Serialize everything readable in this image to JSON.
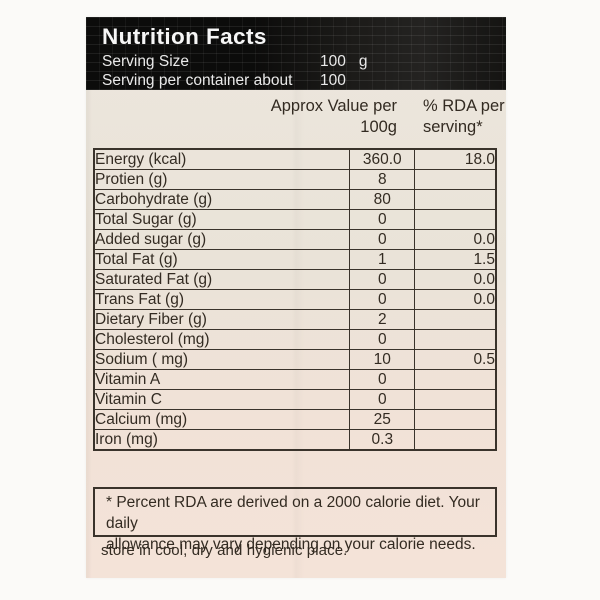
{
  "colors": {
    "band": "#1b1a18",
    "label-top": "#ece6dd",
    "label-bottom": "#f4e3d8",
    "ink": "#332b22",
    "border": "#3a332b",
    "band-text": "#ececec",
    "page": "#fbfaf8"
  },
  "label": {
    "header": {
      "title": "Nutrition Facts",
      "serving_size": {
        "label": "Serving Size",
        "value": "100",
        "unit": "g"
      },
      "servings_per_container": {
        "label": "Serving per container about",
        "value": "100"
      }
    },
    "columns": {
      "approx_line1": "Approx Value per",
      "approx_line2": "100g",
      "rda_line1": "% RDA per",
      "rda_line2": "serving*"
    },
    "table": {
      "rows": [
        {
          "name": "Energy (kcal)",
          "value": "360.0",
          "rda": "18.0"
        },
        {
          "name": "Protien (g)",
          "value": "8",
          "rda": ""
        },
        {
          "name": "Carbohydrate (g)",
          "value": "80",
          "rda": ""
        },
        {
          "name": "Total Sugar (g)",
          "value": "0",
          "rda": ""
        },
        {
          "name": "Added sugar (g)",
          "value": "0",
          "rda": "0.0"
        },
        {
          "name": "Total Fat (g)",
          "value": "1",
          "rda": "1.5"
        },
        {
          "name": "Saturated Fat (g)",
          "value": "0",
          "rda": "0.0"
        },
        {
          "name": "Trans Fat (g)",
          "value": "0",
          "rda": "0.0"
        },
        {
          "name": "Dietary Fiber (g)",
          "value": "2",
          "rda": ""
        },
        {
          "name": "Cholesterol (mg)",
          "value": "0",
          "rda": ""
        },
        {
          "name": "Sodium ( mg)",
          "value": "10",
          "rda": "0.5"
        },
        {
          "name": "Vitamin A",
          "value": "0",
          "rda": ""
        },
        {
          "name": "Vitamin C",
          "value": "0",
          "rda": ""
        },
        {
          "name": "Calcium (mg)",
          "value": "25",
          "rda": ""
        },
        {
          "name": "Iron (mg)",
          "value": "0.3",
          "rda": ""
        }
      ]
    },
    "footnote": {
      "line1": "* Percent RDA are derived on a 2000 calorie diet. Your daily",
      "line2": "allowance may vary depending on your calorie needs."
    },
    "storage_note": "store in cool, dry and hygienic place."
  }
}
